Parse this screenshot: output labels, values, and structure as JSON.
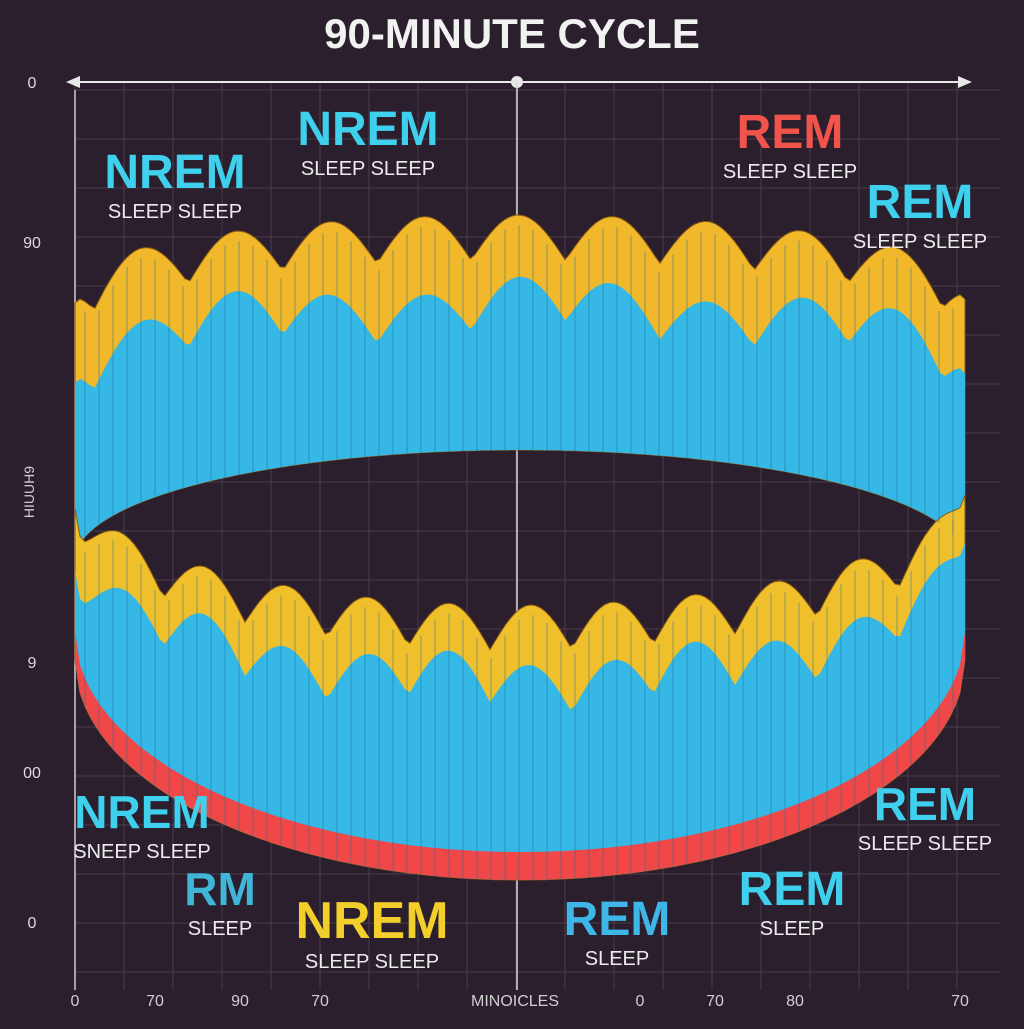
{
  "title": "90-MINUTE CYCLE",
  "labels": [
    {
      "heading": "NREM",
      "sub": "SLEEP SLEEP",
      "color": "#3fd0ee"
    },
    {
      "heading": "NREM",
      "sub": "SLEEP SLEEP",
      "color": "#3fd0ee"
    },
    {
      "heading": "REM",
      "sub": "SLEEP SLEEP",
      "color": "#f0544a"
    },
    {
      "heading": "REM",
      "sub": "SLEEP SLEEP",
      "color": "#3fd0ee"
    },
    {
      "heading": "NREM",
      "sub": "SNEEP SLEEP",
      "color": "#3fd0ee"
    },
    {
      "heading": "RM",
      "sub": "SLEEP",
      "color": "#3fb6d8"
    },
    {
      "heading": "NREM",
      "sub": "SLEEP SLEEP",
      "color": "#f2cf2a"
    },
    {
      "heading": "REM",
      "sub": "SLEEP",
      "color": "#3fb6e8"
    },
    {
      "heading": "REM",
      "sub": "SLEEP",
      "color": "#3fd0ee"
    },
    {
      "heading": "REM",
      "sub": "SLEEP SLEEP",
      "color": "#3fd0ee"
    }
  ],
  "left_axis": [
    "0",
    "90",
    "9",
    "00",
    "0"
  ],
  "side_label": "HIUUH9",
  "bottom_axis": [
    "0",
    "70",
    "90",
    "70",
    "MINOICLES",
    "0",
    "70",
    "80",
    "70"
  ]
}
